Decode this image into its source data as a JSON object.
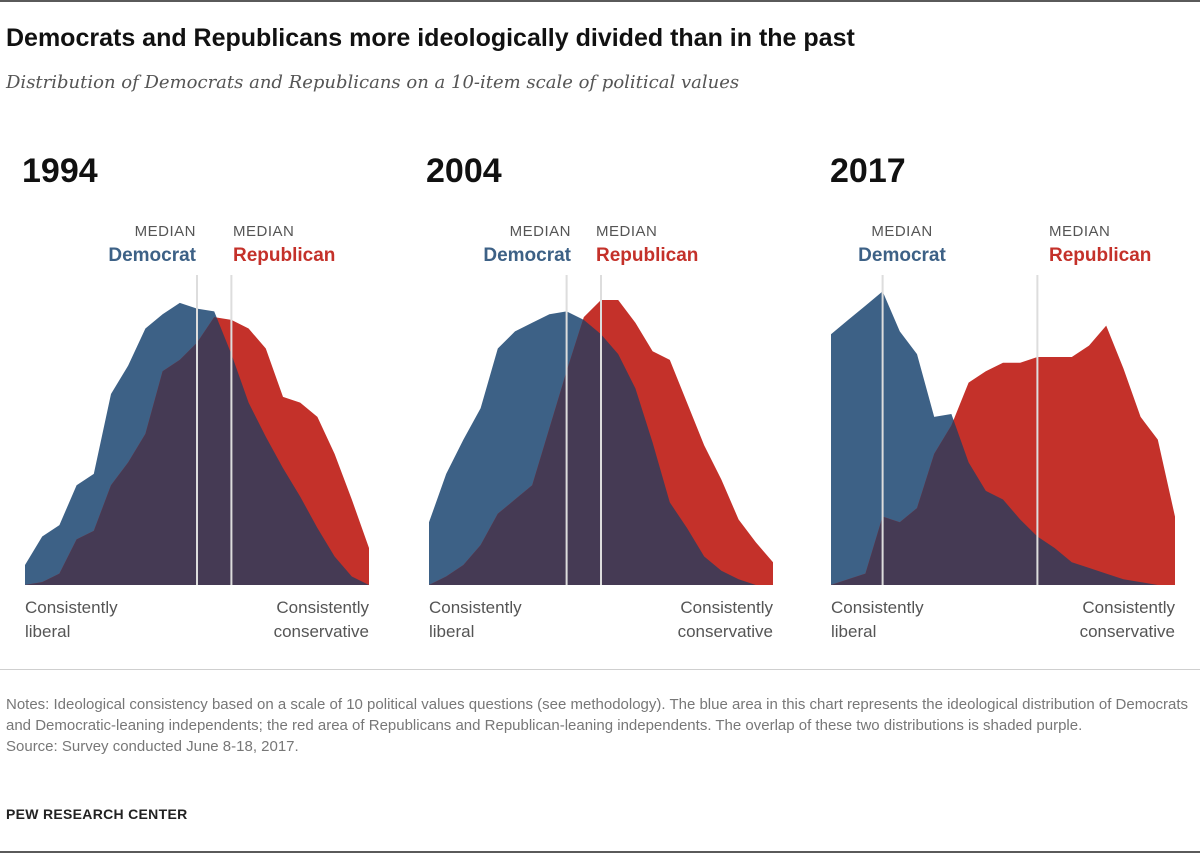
{
  "header": {
    "title": "Democrats and Republicans more ideologically divided than in the past",
    "subtitle": "Distribution of Democrats and Republicans on a 10-item scale of political values"
  },
  "labels": {
    "median": "MEDIAN",
    "democrat": "Democrat",
    "republican": "Republican",
    "left_axis": [
      "Consistently",
      "liberal"
    ],
    "right_axis": [
      "Consistently",
      "conservative"
    ]
  },
  "colors": {
    "democrat": "#3d6186",
    "republican": "#c4312a",
    "overlap": "#453a54",
    "median_line": "#dddddd"
  },
  "chart_data": [
    {
      "type": "area",
      "title": "1994",
      "x": [
        0,
        1,
        2,
        3,
        4,
        5,
        6,
        7,
        8,
        9,
        10,
        11,
        12,
        13,
        14,
        15,
        16,
        17,
        18,
        19,
        20
      ],
      "series": [
        {
          "name": "Democrat",
          "values": [
            0.07,
            0.17,
            0.21,
            0.35,
            0.39,
            0.67,
            0.77,
            0.9,
            0.95,
            0.99,
            0.97,
            0.96,
            0.81,
            0.64,
            0.52,
            0.41,
            0.31,
            0.2,
            0.1,
            0.03,
            0.0
          ]
        },
        {
          "name": "Republican",
          "values": [
            0.0,
            0.01,
            0.04,
            0.16,
            0.19,
            0.35,
            0.43,
            0.53,
            0.75,
            0.79,
            0.85,
            0.94,
            0.93,
            0.9,
            0.83,
            0.66,
            0.64,
            0.59,
            0.46,
            0.3,
            0.13
          ]
        }
      ],
      "median_democrat": 10,
      "median_republican": 12,
      "xlim": [
        0,
        20
      ],
      "ylim": [
        0,
        1
      ]
    },
    {
      "type": "area",
      "title": "2004",
      "x": [
        0,
        1,
        2,
        3,
        4,
        5,
        6,
        7,
        8,
        9,
        10,
        11,
        12,
        13,
        14,
        15,
        16,
        17,
        18,
        19,
        20
      ],
      "series": [
        {
          "name": "Democrat",
          "values": [
            0.22,
            0.39,
            0.51,
            0.62,
            0.83,
            0.89,
            0.92,
            0.95,
            0.96,
            0.93,
            0.88,
            0.81,
            0.69,
            0.5,
            0.29,
            0.2,
            0.1,
            0.05,
            0.02,
            0.0,
            0.0
          ]
        },
        {
          "name": "Republican",
          "values": [
            0.0,
            0.03,
            0.07,
            0.14,
            0.25,
            0.3,
            0.35,
            0.55,
            0.75,
            0.94,
            1.0,
            1.0,
            0.92,
            0.82,
            0.79,
            0.64,
            0.49,
            0.37,
            0.23,
            0.15,
            0.08
          ]
        }
      ],
      "median_democrat": 8,
      "median_republican": 10,
      "xlim": [
        0,
        20
      ],
      "ylim": [
        0,
        1
      ]
    },
    {
      "type": "area",
      "title": "2017",
      "x": [
        0,
        1,
        2,
        3,
        4,
        5,
        6,
        7,
        8,
        9,
        10,
        11,
        12,
        13,
        14,
        15,
        16,
        17,
        18,
        19,
        20
      ],
      "series": [
        {
          "name": "Democrat",
          "values": [
            0.88,
            0.93,
            0.98,
            1.03,
            0.89,
            0.81,
            0.59,
            0.6,
            0.43,
            0.33,
            0.3,
            0.23,
            0.17,
            0.13,
            0.08,
            0.06,
            0.04,
            0.02,
            0.01,
            0.0,
            0.0
          ]
        },
        {
          "name": "Republican",
          "values": [
            0.0,
            0.02,
            0.04,
            0.24,
            0.22,
            0.27,
            0.46,
            0.56,
            0.71,
            0.75,
            0.78,
            0.78,
            0.8,
            0.8,
            0.8,
            0.84,
            0.91,
            0.76,
            0.59,
            0.51,
            0.24
          ]
        }
      ],
      "median_democrat": 3,
      "median_republican": 12,
      "xlim": [
        0,
        20
      ],
      "ylim": [
        0,
        1
      ]
    }
  ],
  "footer": {
    "notes": "Notes: Ideological consistency based on a scale of 10 political values questions (see methodology). The blue area in this chart represents the ideological distribution of Democrats and Democratic-leaning independents; the red area of Republicans and Republican-leaning independents. The overlap of these two distributions is shaded purple.",
    "source": "Source: Survey conducted June 8-18, 2017.",
    "org": "PEW RESEARCH CENTER"
  }
}
